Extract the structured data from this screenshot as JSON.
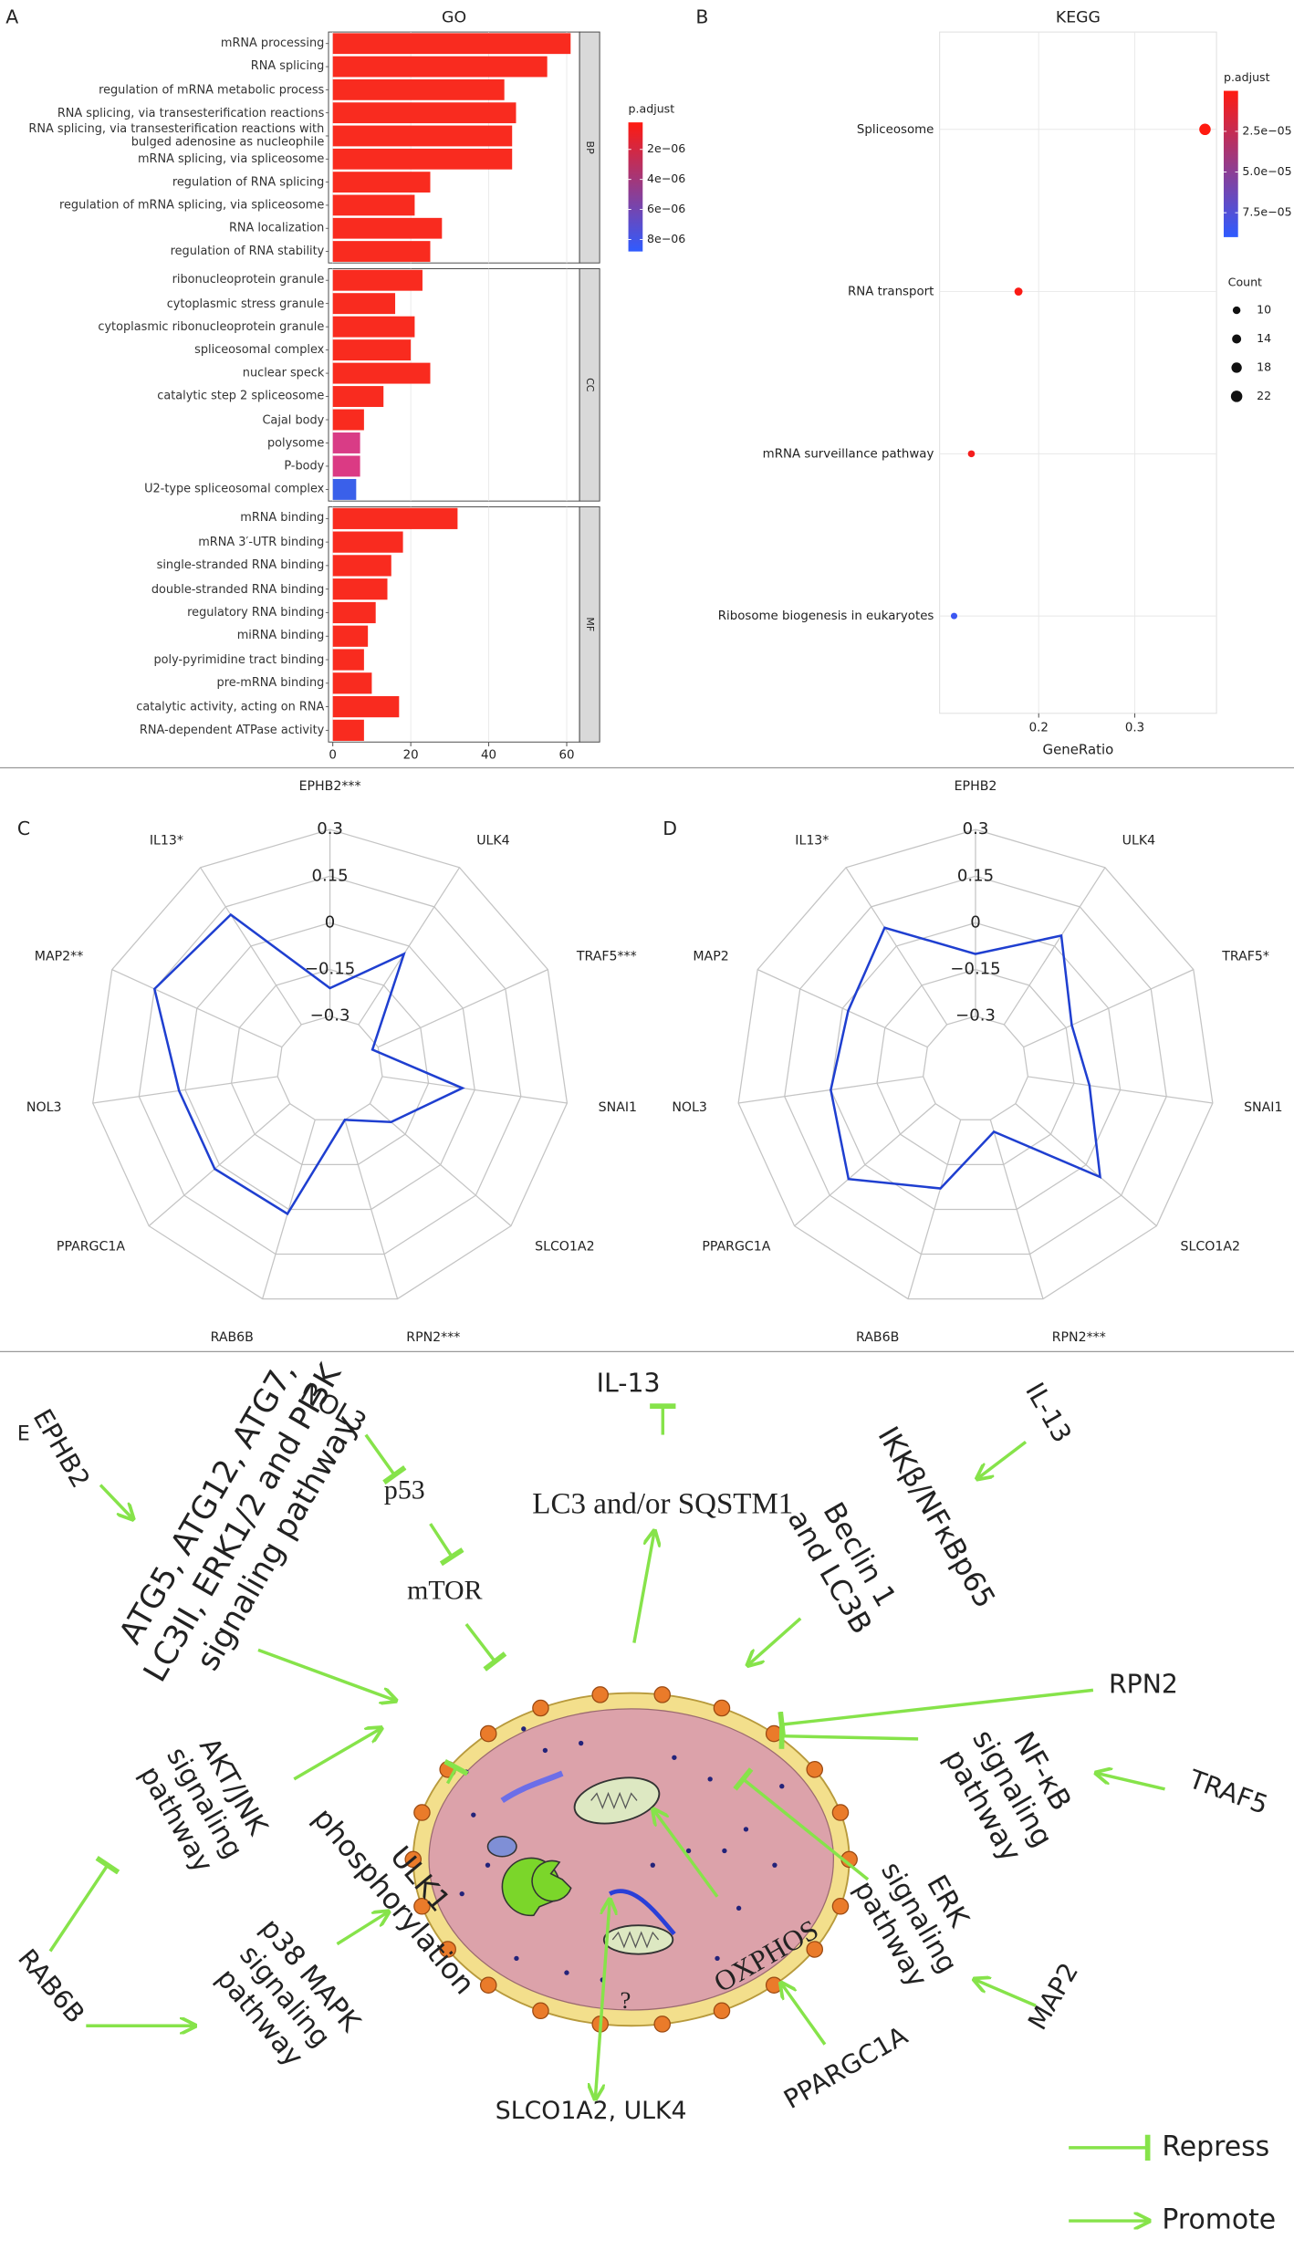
{
  "chart_data": [
    {
      "type": "bar",
      "panel": "A",
      "title": "GO",
      "xlim": [
        -1.1,
        63.3
      ],
      "xticks": [
        0,
        20,
        40,
        60
      ],
      "facets": [
        {
          "name": "BP",
          "categories": [
            "mRNA processing",
            "RNA splicing",
            "regulation of mRNA metabolic process",
            "RNA splicing, via transesterification reactions",
            "RNA splicing, via transesterification reactions with bulged adenosine as nucleophile",
            "mRNA splicing, via spliceosome",
            "regulation of RNA splicing",
            "regulation of mRNA splicing, via spliceosome",
            "RNA localization",
            "regulation of RNA stability"
          ],
          "values": [
            61,
            55,
            44,
            47,
            46,
            46,
            25,
            21,
            28,
            25
          ],
          "colors": [
            "#f92b1f",
            "#f92b1f",
            "#f92b1f",
            "#f92b1f",
            "#f92b1f",
            "#f92b1f",
            "#f92b1f",
            "#f92b1f",
            "#f92b1f",
            "#f92b1f"
          ]
        },
        {
          "name": "CC",
          "categories": [
            "ribonucleoprotein granule",
            "cytoplasmic stress granule",
            "cytoplasmic ribonucleoprotein granule",
            "spliceosomal complex",
            "nuclear speck",
            "catalytic step 2 spliceosome",
            "Cajal body",
            "polysome",
            "P-body",
            "U2-type spliceosomal complex"
          ],
          "values": [
            23,
            16,
            21,
            20,
            25,
            13,
            8,
            7,
            7,
            6
          ],
          "colors": [
            "#f92b1f",
            "#f92b1f",
            "#f92b1f",
            "#f92b1f",
            "#f92b1f",
            "#f92b1f",
            "#f92b1f",
            "#d93c86",
            "#db3a84",
            "#3a60ea"
          ]
        },
        {
          "name": "MF",
          "categories": [
            "mRNA binding",
            "mRNA 3′-UTR binding",
            "single-stranded RNA binding",
            "double-stranded RNA binding",
            "regulatory RNA binding",
            "miRNA binding",
            "poly-pyrimidine tract binding",
            "pre-mRNA binding",
            "catalytic activity, acting on RNA",
            "RNA-dependent ATPase activity"
          ],
          "values": [
            32,
            18,
            15,
            14,
            11,
            9,
            8,
            10,
            17,
            8
          ],
          "colors": [
            "#f92b1f",
            "#f92b1f",
            "#f92b1f",
            "#f92b1f",
            "#f92b1f",
            "#f92b1f",
            "#f92b1f",
            "#f92b1f",
            "#f92b1f",
            "#f92b1f"
          ]
        }
      ],
      "colorbar": {
        "title": "p.adjust",
        "lim": [
          2e-07,
          8.8e-06
        ],
        "low_color": "#ff1a10",
        "high_color": "#2f5bff",
        "ticks": [
          {
            "value": 2e-06,
            "label": "2e−06"
          },
          {
            "value": 4e-06,
            "label": "4e−06"
          },
          {
            "value": 6e-06,
            "label": "6e−06"
          },
          {
            "value": 8e-06,
            "label": "8e−06"
          }
        ]
      }
    },
    {
      "type": "scatter",
      "panel": "B",
      "title": "KEGG",
      "xlabel": "GeneRatio",
      "categories": [
        "Spliceosome",
        "RNA transport",
        "mRNA surveillance pathway",
        "Ribosome biogenesis in eukaryotes"
      ],
      "x": [
        0.373,
        0.179,
        0.13,
        0.112
      ],
      "counts": [
        22,
        11,
        8,
        7
      ],
      "p_adjust": [
        1e-07,
        2e-06,
        5e-06,
        8.5e-05
      ],
      "xlim": [
        0.097,
        0.385
      ],
      "xticks": [
        0.2,
        0.3
      ],
      "grid": true,
      "colorbar": {
        "title": "p.adjust",
        "lim": [
          1e-07,
          9e-05
        ],
        "low_color": "#ff1a10",
        "high_color": "#2f5bff",
        "ticks": [
          {
            "value": 2.5e-05,
            "label": "2.5e−05"
          },
          {
            "value": 5e-05,
            "label": "5.0e−05"
          },
          {
            "value": 7.5e-05,
            "label": "7.5e−05"
          }
        ]
      },
      "size_legend": {
        "title": "Count",
        "values": [
          10,
          14,
          18,
          22
        ]
      }
    },
    {
      "type": "radar",
      "panel": "C",
      "categories": [
        "EPHB2***",
        "ULK4",
        "TRAF5***",
        "SNAI1",
        "SLCO1A2",
        "RPN2***",
        "RAB6B",
        "PPARGC1A",
        "NOL3",
        "MAP2**",
        "IL13*"
      ],
      "values": [
        -0.21,
        -0.03,
        -0.32,
        -0.04,
        -0.21,
        -0.3,
        0.015,
        0.02,
        0.02,
        0.15,
        0.12
      ],
      "rlim": [
        -0.47,
        0.3
      ],
      "rticks": [
        {
          "value": 0.3,
          "label": "0.3"
        },
        {
          "value": 0.15,
          "label": "0.15"
        },
        {
          "value": 0,
          "label": "0"
        },
        {
          "value": -0.15,
          "label": "−0.15"
        },
        {
          "value": -0.3,
          "label": "−0.3"
        }
      ],
      "color": "#1f3fd0",
      "tick_color": "#33cc33"
    },
    {
      "type": "radar",
      "panel": "D",
      "categories": [
        "EPHB2",
        "ULK4",
        "TRAF5*",
        "SNAI1",
        "SLCO1A2",
        "RPN2***",
        "RAB6B",
        "PPARGC1A",
        "NOL3",
        "MAP2",
        "IL13*"
      ],
      "values": [
        -0.1,
        0.04,
        -0.13,
        -0.1,
        0.06,
        -0.26,
        -0.07,
        0.07,
        0.0,
        -0.02,
        0.07
      ],
      "rlim": [
        -0.47,
        0.3
      ],
      "rticks": [
        {
          "value": 0.3,
          "label": "0.3"
        },
        {
          "value": 0.15,
          "label": "0.15"
        },
        {
          "value": 0,
          "label": "0"
        },
        {
          "value": -0.15,
          "label": "−0.15"
        },
        {
          "value": -0.3,
          "label": "−0.3"
        }
      ],
      "color": "#1f3fd0",
      "tick_color": "#e02020"
    }
  ],
  "diagram": {
    "panel": "E",
    "genes": [
      "EPHB2",
      "NOL3",
      "IL-13",
      "IL-13",
      "RPN2",
      "TRAF5",
      "RAB6B",
      "SLCO1A2, ULK4",
      "PPARGC1A",
      "MAP2"
    ],
    "processes": [
      [
        "ATG5, ATG12, ATG7,",
        "LC3II, ERK1/2 and PI3K",
        "signaling pathway"
      ],
      [
        "p53"
      ],
      [
        "mTOR"
      ],
      [
        "LC3 and/or SQSTM1"
      ],
      [
        "IKKβ/NFκBp65"
      ],
      [
        "Beclin 1",
        "and LC3B"
      ],
      [
        "NF-κB",
        "signaling",
        "pathway"
      ],
      [
        "AKT/JNK",
        "signaling",
        "pathway"
      ],
      [
        "ULK1",
        "phosphorylation"
      ],
      [
        "p38 MAPK",
        "signaling",
        "pathway"
      ],
      [
        "?"
      ],
      [
        "OXPHOS"
      ],
      [
        "ERK",
        "signaling",
        "pathway"
      ]
    ],
    "legend": [
      "Repress",
      "Promote"
    ]
  }
}
